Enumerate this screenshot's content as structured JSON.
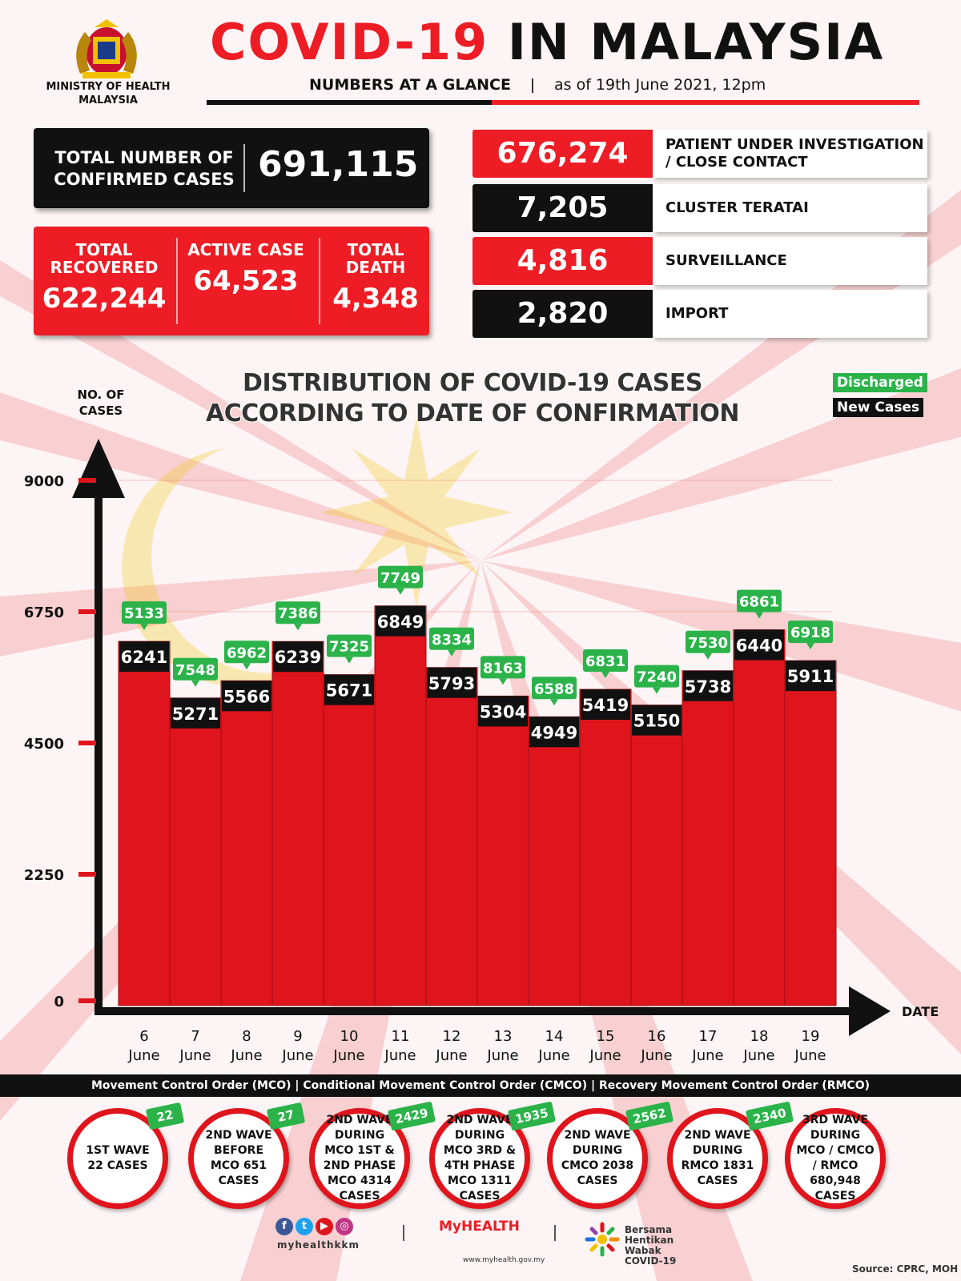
{
  "header": {
    "ministry": "MINISTRY OF HEALTH MALAYSIA",
    "title_part1": "COVID-19",
    "title_part2": "IN MALAYSIA",
    "subtitle": "NUMBERS AT A GLANCE",
    "date": "as of 19th June 2021, 12pm"
  },
  "totals": {
    "confirmed_label": "TOTAL NUMBER OF CONFIRMED CASES",
    "confirmed_value": "691,115",
    "recovered_label": "TOTAL RECOVERED",
    "recovered_value": "622,244",
    "active_label": "ACTIVE CASE",
    "active_value": "64,523",
    "death_label": "TOTAL DEATH",
    "death_value": "4,348"
  },
  "categories": [
    {
      "value": "676,274",
      "label": "PATIENT UNDER INVESTIGATION / CLOSE CONTACT",
      "color": "#ee1c24"
    },
    {
      "value": "7,205",
      "label": "CLUSTER TERATAI",
      "color": "#111111"
    },
    {
      "value": "4,816",
      "label": "SURVEILLANCE",
      "color": "#ee1c24"
    },
    {
      "value": "2,820",
      "label": "IMPORT",
      "color": "#111111"
    }
  ],
  "chart_data": {
    "type": "bar",
    "title": "DISTRIBUTION OF COVID-19 CASES ACCORDING TO DATE OF CONFIRMATION",
    "ylabel": "NO. OF CASES",
    "xlabel": "DATE",
    "ylim": [
      0,
      9000
    ],
    "yticks": [
      0,
      2250,
      4500,
      6750,
      9000
    ],
    "categories": [
      "6 June",
      "7 June",
      "8 June",
      "9 June",
      "10 June",
      "11 June",
      "12 June",
      "13 June",
      "14 June",
      "15 June",
      "16 June",
      "17 June",
      "18 June",
      "19 June"
    ],
    "category_day": [
      "6",
      "7",
      "8",
      "9",
      "10",
      "11",
      "12",
      "13",
      "14",
      "15",
      "16",
      "17",
      "18",
      "19"
    ],
    "category_month": "June",
    "series": [
      {
        "name": "New Cases",
        "values": [
          6241,
          5271,
          5566,
          6239,
          5671,
          6849,
          5793,
          5304,
          4949,
          5419,
          5150,
          5738,
          6440,
          5911
        ],
        "color": "#111111"
      },
      {
        "name": "Discharged",
        "values": [
          5133,
          7548,
          6962,
          7386,
          7325,
          7749,
          8334,
          8163,
          6588,
          6831,
          7240,
          7530,
          6861,
          6918
        ],
        "color": "#2bb34a"
      }
    ],
    "bar_color": "#e0141c",
    "legend": "top-right"
  },
  "movement": {
    "label": "Movement Control Order (MCO) | Conditional Movement Control Order (CMCO) | Recovery Movement Control Order (RMCO)",
    "waves": [
      {
        "text": "1ST WAVE 22 CASES",
        "badge": "22"
      },
      {
        "text": "2ND WAVE BEFORE MCO 651 CASES",
        "badge": "27"
      },
      {
        "text": "2ND WAVE DURING MCO 1ST & 2ND PHASE MCO 4314 CASES",
        "badge": "2429"
      },
      {
        "text": "2ND WAVE DURING MCO 3RD & 4TH PHASE MCO 1311 CASES",
        "badge": "1935"
      },
      {
        "text": "2ND WAVE DURING CMCO 2038 CASES",
        "badge": "2562"
      },
      {
        "text": "2ND WAVE DURING RMCO 1831 CASES",
        "badge": "2340"
      },
      {
        "text": "3RD WAVE DURING MCO / CMCO / RMCO 680,948 CASES",
        "badge": ""
      }
    ]
  },
  "footer": {
    "social_handle": "myhealthkkm",
    "myhealth": "MyHEALTH",
    "myhealth_url": "www.myhealth.gov.my",
    "campaign": "Bersama Hentikan Wabak COVID-19",
    "source": "Source: CPRC, MOH"
  },
  "icons": {
    "crest": "malaysia-coat-of-arms-icon",
    "social": [
      "facebook-icon",
      "twitter-icon",
      "youtube-icon",
      "instagram-icon"
    ]
  }
}
